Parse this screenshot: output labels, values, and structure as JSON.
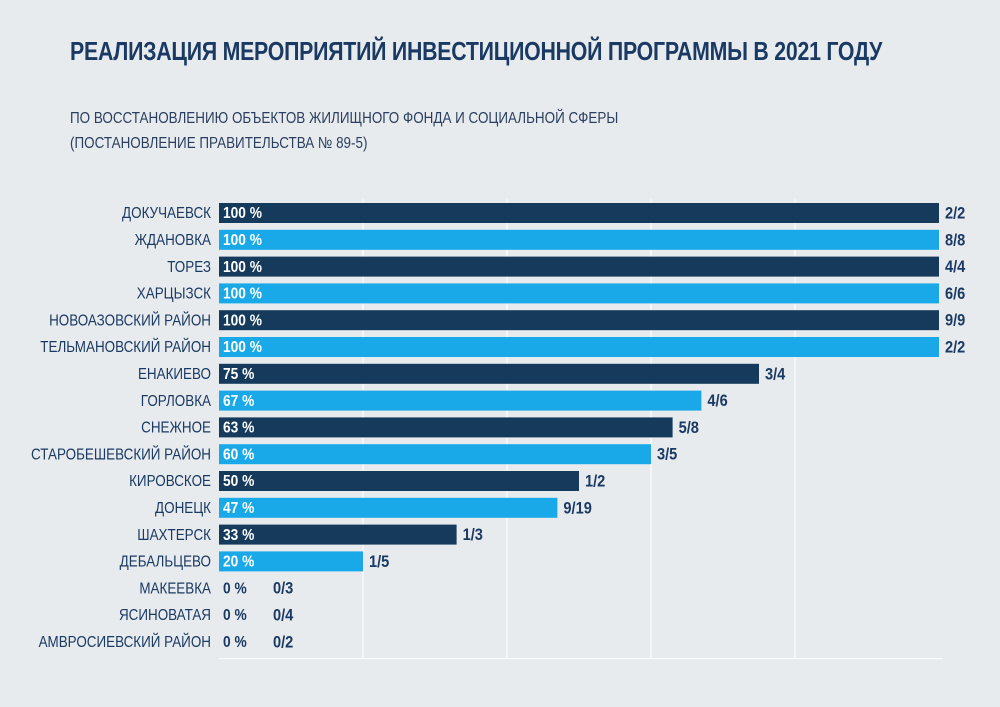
{
  "title": "РЕАЛИЗАЦИЯ МЕРОПРИЯТИЙ ИНВЕСТИЦИОННОЙ ПРОГРАММЫ В 2021 ГОДУ",
  "subtitle_line1": "ПО ВОССТАНОВЛЕНИЮ ОБЪЕКТОВ ЖИЛИЩНОГО ФОНДА И СОЦИАЛЬНОЙ СФЕРЫ",
  "subtitle_line2": "(ПОСТАНОВЛЕНИЕ ПРАВИТЕЛЬСТВА № 89-5)",
  "colors": {
    "background": "#e8ebee",
    "bar_dark": "#153a5c",
    "bar_light": "#1aa9e8",
    "text_dark": "#1a3a63",
    "grid": "#ffffff"
  },
  "chart_data": {
    "type": "bar",
    "orientation": "horizontal",
    "categories": [
      "ДОКУЧАЕВСК",
      "ЖДАНОВКА",
      "ТОРЕЗ",
      "ХАРЦЫЗСК",
      "НОВОАЗОВСКИЙ РАЙОН",
      "ТЕЛЬМАНОВСКИЙ РАЙОН",
      "ЕНАКИЕВО",
      "ГОРЛОВКА",
      "СНЕЖНОЕ",
      "СТАРОБЕШЕВСКИЙ РАЙОН",
      "КИРОВСКОЕ",
      "ДОНЕЦК",
      "ШАХТЕРСК",
      "ДЕБАЛЬЦЕВО",
      "МАКЕЕВКА",
      "ЯСИНОВАТАЯ",
      "АМВРОСИЕВСКИЙ РАЙОН"
    ],
    "values": [
      100,
      100,
      100,
      100,
      100,
      100,
      75,
      67,
      63,
      60,
      50,
      47,
      33,
      20,
      0,
      0,
      0
    ],
    "value_labels": [
      "100 %",
      "100 %",
      "100 %",
      "100 %",
      "100 %",
      "100 %",
      "75 %",
      "67 %",
      "63 %",
      "60 %",
      "50 %",
      "47 %",
      "33 %",
      "20 %",
      "0 %",
      "0 %",
      "0 %"
    ],
    "ratio_labels": [
      "2/2",
      "8/8",
      "4/4",
      "6/6",
      "9/9",
      "2/2",
      "3/4",
      "4/6",
      "5/8",
      "3/5",
      "1/2",
      "9/19",
      "1/3",
      "1/5",
      "0/3",
      "0/4",
      "0/2"
    ],
    "xlim": [
      0,
      100
    ],
    "grid": true,
    "bar_colors": "alternating"
  }
}
